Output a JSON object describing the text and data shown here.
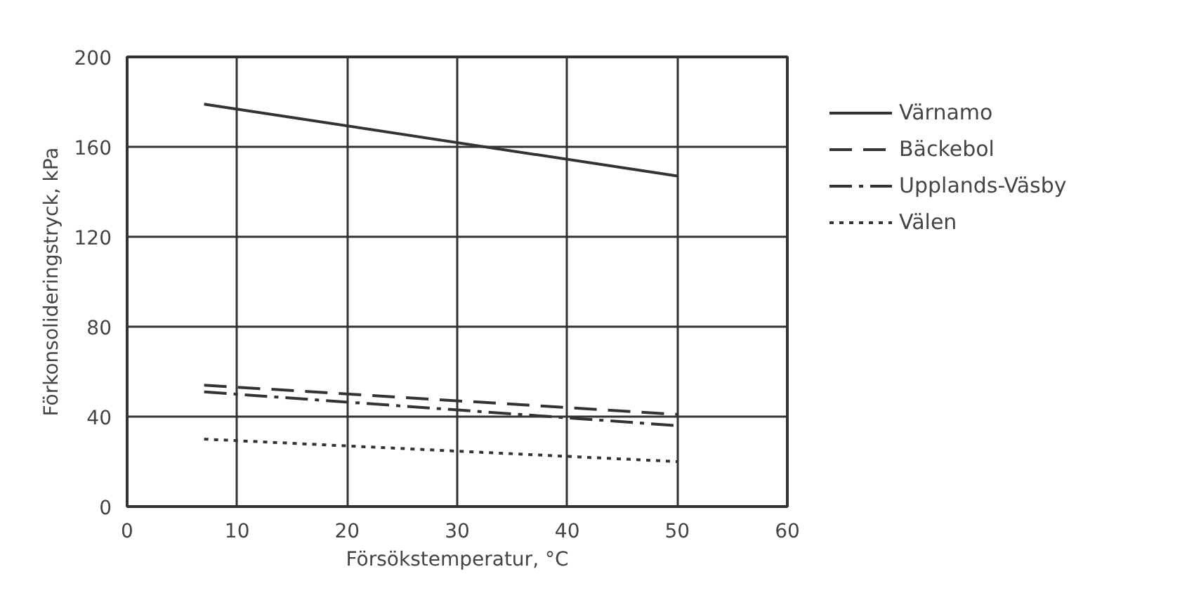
{
  "chart_data": {
    "type": "line",
    "xlabel": "Försökstemperatur, °C",
    "ylabel": "Förkonsolideringstryck, kPa",
    "x": [
      7,
      50
    ],
    "series": [
      {
        "name": "Värnamo",
        "color": "#333333",
        "values": [
          179,
          147
        ],
        "line_style": "solid"
      },
      {
        "name": "Bäckebol",
        "color": "#333333",
        "values": [
          54,
          41
        ],
        "line_style": "dashed"
      },
      {
        "name": "Upplands-Väsby",
        "color": "#333333",
        "values": [
          51,
          36
        ],
        "line_style": "dashdot"
      },
      {
        "name": "Välen",
        "color": "#333333",
        "values": [
          30,
          20
        ],
        "line_style": "dotted"
      }
    ],
    "xlim": [
      0,
      60
    ],
    "ylim": [
      0,
      200
    ],
    "xticks": [
      0,
      10,
      20,
      30,
      40,
      50,
      60
    ],
    "yticks": [
      0,
      40,
      80,
      120,
      160,
      200
    ],
    "grid": true,
    "legend": "right",
    "marker": "none"
  }
}
